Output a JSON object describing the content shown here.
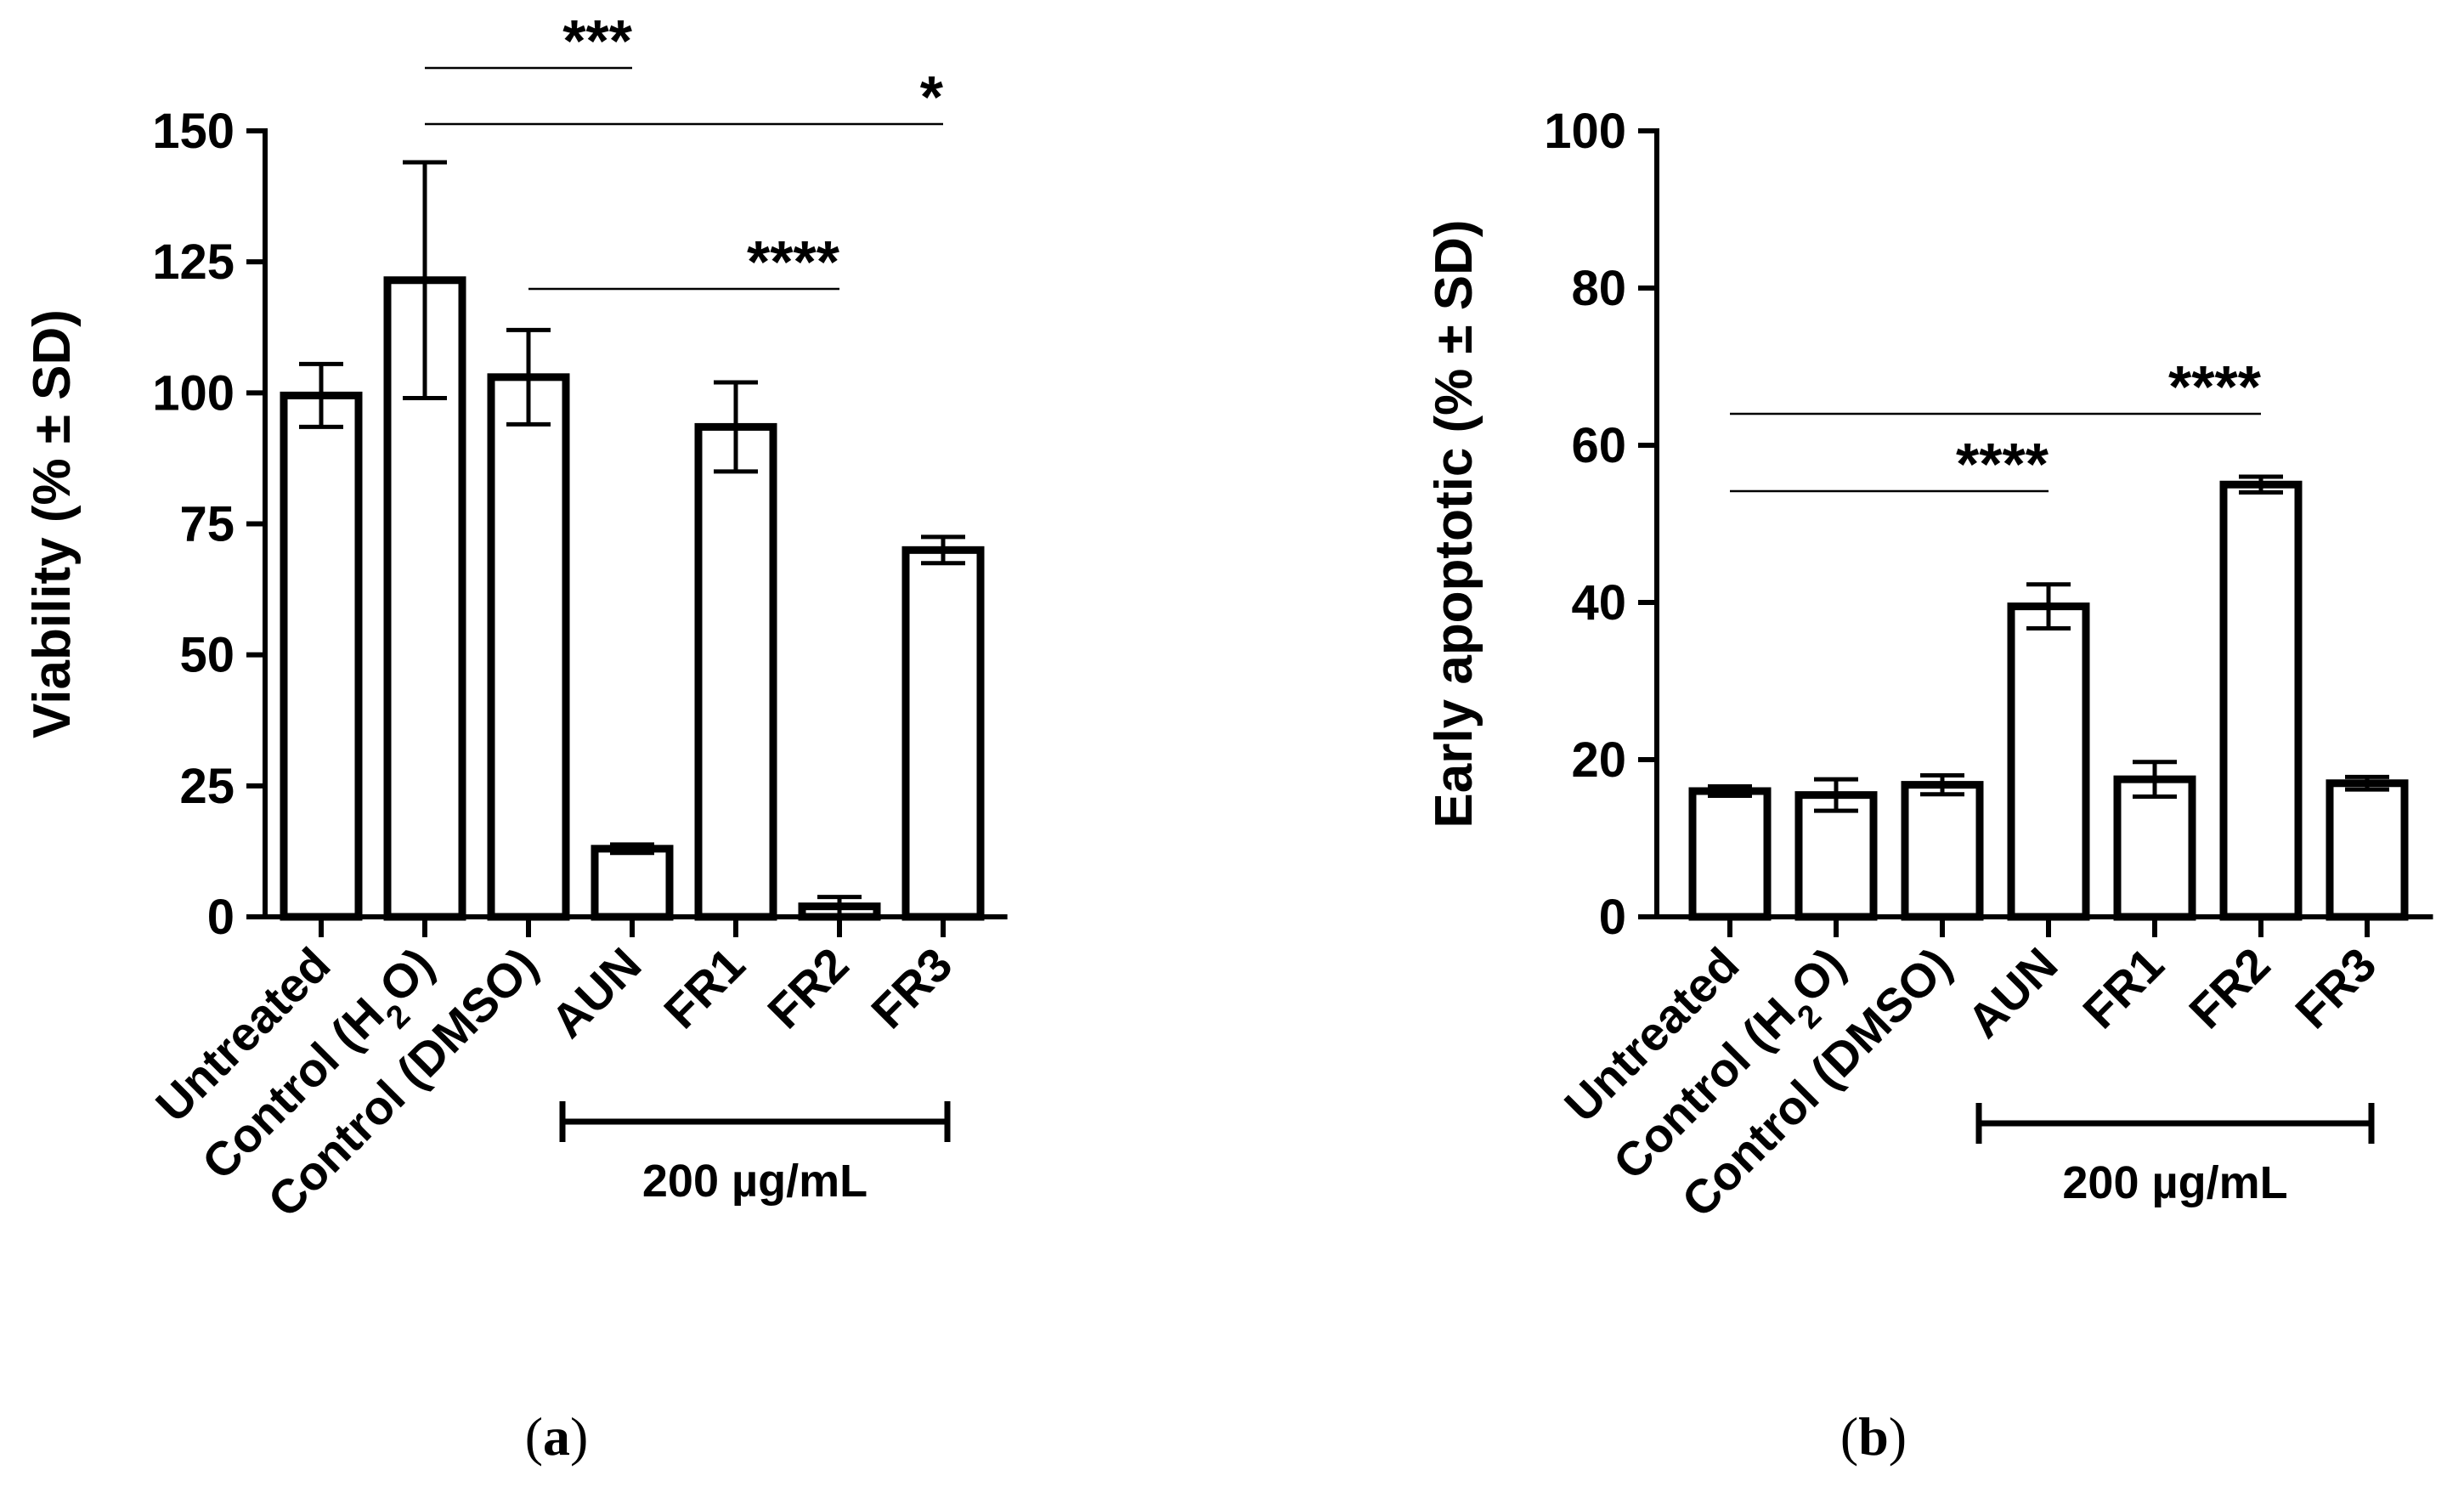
{
  "chart_data": [
    {
      "panel": "(a)",
      "panel_letter": "a",
      "type": "bar",
      "categories": [
        "Untreated",
        "Control (H2O)",
        "Control (DMSO)",
        "AUN",
        "FR1",
        "FR2",
        "FR3"
      ],
      "category_labels": [
        {
          "main": "Untreated"
        },
        {
          "main": "Control (H",
          "sub": "2",
          "tail": "O)"
        },
        {
          "main": "Control (DMSO)"
        },
        {
          "main": "AUN"
        },
        {
          "main": "FR1"
        },
        {
          "main": "FR2"
        },
        {
          "main": "FR3"
        }
      ],
      "values": [
        99.5,
        121.5,
        103,
        13,
        93.5,
        2,
        70
      ],
      "errors": [
        6,
        22.5,
        9,
        0.8,
        8.5,
        1.8,
        2.5
      ],
      "ylabel": "Viability (% ± SD)",
      "ylim": [
        0,
        150
      ],
      "yticks": [
        0,
        25,
        50,
        75,
        100,
        125,
        150
      ],
      "bracket": {
        "from": "AUN",
        "to": "FR3",
        "label": "200 µg/mL"
      },
      "significance": [
        {
          "from": "Control (H2O)",
          "to": "AUN",
          "label": "***",
          "level": 1
        },
        {
          "from": "Control (H2O)",
          "to": "FR3",
          "label": "*",
          "level": 2
        },
        {
          "from": "Control (DMSO)",
          "to": "FR2",
          "label": "****",
          "level": 3
        }
      ]
    },
    {
      "panel": "(b)",
      "panel_letter": "b",
      "type": "bar",
      "categories": [
        "Untreated",
        "Control (H2O)",
        "Control (DMSO)",
        "AUN",
        "FR1",
        "FR2",
        "FR3"
      ],
      "category_labels": [
        {
          "main": "Untreated"
        },
        {
          "main": "Control (H",
          "sub": "2",
          "tail": "O)"
        },
        {
          "main": "Control (DMSO)"
        },
        {
          "main": "AUN"
        },
        {
          "main": "FR1"
        },
        {
          "main": "FR2"
        },
        {
          "main": "FR3"
        }
      ],
      "values": [
        16,
        15.5,
        16.8,
        39.5,
        17.5,
        55,
        17
      ],
      "errors": [
        0.6,
        2,
        1.2,
        2.8,
        2.2,
        1,
        0.8
      ],
      "ylabel": "Early apoptotic (% ± SD)",
      "ylim": [
        0,
        100
      ],
      "yticks": [
        0,
        20,
        40,
        60,
        80,
        100
      ],
      "bracket": {
        "from": "AUN",
        "to": "FR3",
        "label": "200 µg/mL"
      },
      "significance": [
        {
          "from": "Untreated",
          "to": "FR2",
          "label": "****",
          "level": 1
        },
        {
          "from": "Untreated",
          "to": "AUN",
          "label": "****",
          "level": 2
        }
      ]
    }
  ]
}
